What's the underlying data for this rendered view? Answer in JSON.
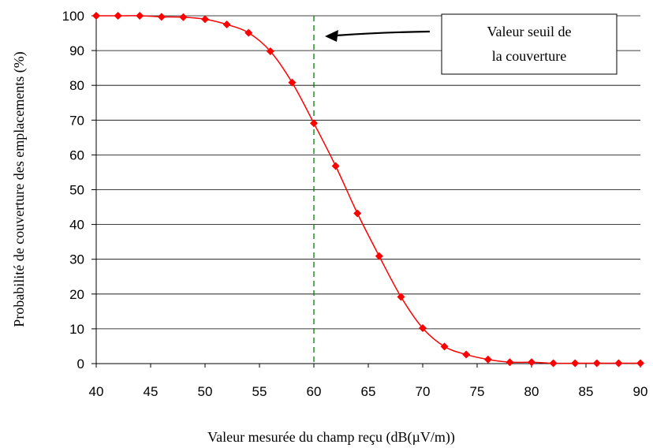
{
  "chart_data": {
    "type": "line",
    "title": "",
    "xlabel": "Valeur mesurée du champ reçu (dB(µV/m))",
    "ylabel": "Probabilité de couverture des emplacements  (%)",
    "xlim": [
      40,
      90
    ],
    "ylim": [
      0,
      100
    ],
    "x_ticks": [
      40,
      45,
      50,
      55,
      60,
      65,
      70,
      75,
      80,
      85,
      90
    ],
    "y_ticks": [
      0,
      10,
      20,
      30,
      40,
      50,
      60,
      70,
      80,
      90,
      100
    ],
    "grid": "horizontal",
    "legend": "none",
    "series": [
      {
        "color": "#ff0000",
        "marker": "diamond",
        "x": [
          40,
          42,
          44,
          46,
          48,
          50,
          52,
          54,
          56,
          58,
          60,
          62,
          64,
          66,
          68,
          70,
          72,
          74,
          76,
          78,
          80,
          82,
          84,
          86,
          88,
          90
        ],
        "y": [
          100,
          100,
          100,
          99.7,
          99.6,
          99,
          97.5,
          95.1,
          89.8,
          80.8,
          69.1,
          56.8,
          43.2,
          30.9,
          19.2,
          10.2,
          4.9,
          2.6,
          1.2,
          0.4,
          0.4,
          0.1,
          0.1,
          0.1,
          0.1,
          0.1
        ]
      }
    ],
    "threshold_line": {
      "x": 60,
      "style": "dashed",
      "color": "#008000"
    },
    "annotation": {
      "lines": [
        "Valeur seuil de",
        "la couverture"
      ],
      "arrow_to_x": 60
    }
  }
}
